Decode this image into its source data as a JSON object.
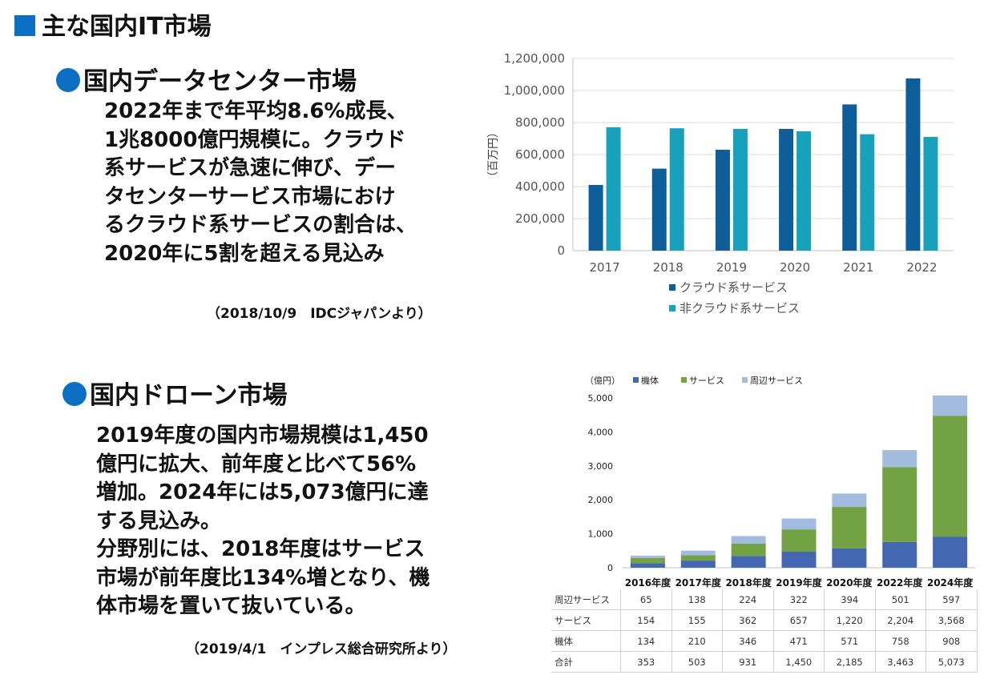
{
  "slide": {
    "title": "主な国内IT市場"
  },
  "dc": {
    "title": "国内データセンター市場",
    "text_lines": [
      "2022年まで年平均8.6%成長、",
      "1兆8000億円規模に。クラウド",
      "系サービスが急速に伸び、デー",
      "タセンターサービス市場におけ",
      "るクラウド系サービスの割合は、",
      "2020年に5割を超える見込み"
    ],
    "source": "（2018/10/9　IDCジャパンより）"
  },
  "drone": {
    "title": "国内ドローン市場",
    "text_lines": [
      "2019年度の国内市場規模は1,450",
      "億円に拡大、前年度と比べて56%",
      "増加。2024年には5,073億円に達",
      "する見込み。",
      "分野別には、2018年度はサービス",
      "市場が前年度比134%増となり、機",
      "体市場を置いて抜いている。"
    ],
    "source": "（2019/4/1　インプレス総合研究所より）"
  },
  "chart_data": [
    {
      "type": "bar",
      "title": "",
      "ylabel": "（百万円）",
      "categories": [
        "2017",
        "2018",
        "2019",
        "2020",
        "2021",
        "2022"
      ],
      "series": [
        {
          "name": "クラウド系サービス",
          "values": [
            410000,
            512000,
            630000,
            760000,
            913000,
            1075000
          ]
        },
        {
          "name": "非クラウド系サービス",
          "values": [
            770000,
            764000,
            760000,
            745000,
            727000,
            710000
          ]
        }
      ],
      "ylim": [
        0,
        1200000
      ],
      "yticks": [
        0,
        200000,
        400000,
        600000,
        800000,
        1000000,
        1200000
      ],
      "ytick_labels": [
        "0",
        "200,000",
        "400,000",
        "600,000",
        "800,000",
        "1,000,000",
        "1,200,000"
      ],
      "legend_position": "bottom",
      "grid": true,
      "colors": [
        "#0d5e9b",
        "#18a1bb"
      ]
    },
    {
      "type": "bar",
      "stacked": true,
      "ylabel": "（億円）",
      "categories": [
        "2016年度",
        "2017年度",
        "2018年度",
        "2019年度",
        "2020年度",
        "2022年度",
        "2024年度"
      ],
      "series": [
        {
          "name": "機体",
          "values": [
            134,
            210,
            346,
            471,
            571,
            758,
            908
          ]
        },
        {
          "name": "サービス",
          "values": [
            154,
            155,
            362,
            657,
            1220,
            2204,
            3568
          ]
        },
        {
          "name": "周辺サービス",
          "values": [
            65,
            138,
            224,
            322,
            394,
            501,
            597
          ]
        }
      ],
      "ylim": [
        0,
        5000
      ],
      "yticks": [
        0,
        1000,
        2000,
        3000,
        4000,
        5000
      ],
      "ytick_labels": [
        "0",
        "1,000",
        "2,000",
        "3,000",
        "4,000",
        "5,000"
      ],
      "legend_position": "top",
      "grid": false,
      "colors": [
        "#4367b0",
        "#72a243",
        "#a4bbe0"
      ],
      "table": {
        "rows": [
          {
            "label": "周辺サービス",
            "cells": [
              "65",
              "138",
              "224",
              "322",
              "394",
              "501",
              "597"
            ]
          },
          {
            "label": "サービス",
            "cells": [
              "154",
              "155",
              "362",
              "657",
              "1,220",
              "2,204",
              "3,568"
            ]
          },
          {
            "label": "機体",
            "cells": [
              "134",
              "210",
              "346",
              "471",
              "571",
              "758",
              "908"
            ]
          },
          {
            "label": "合計",
            "cells": [
              "353",
              "503",
              "931",
              "1,450",
              "2,185",
              "3,463",
              "5,073"
            ]
          }
        ]
      }
    }
  ]
}
